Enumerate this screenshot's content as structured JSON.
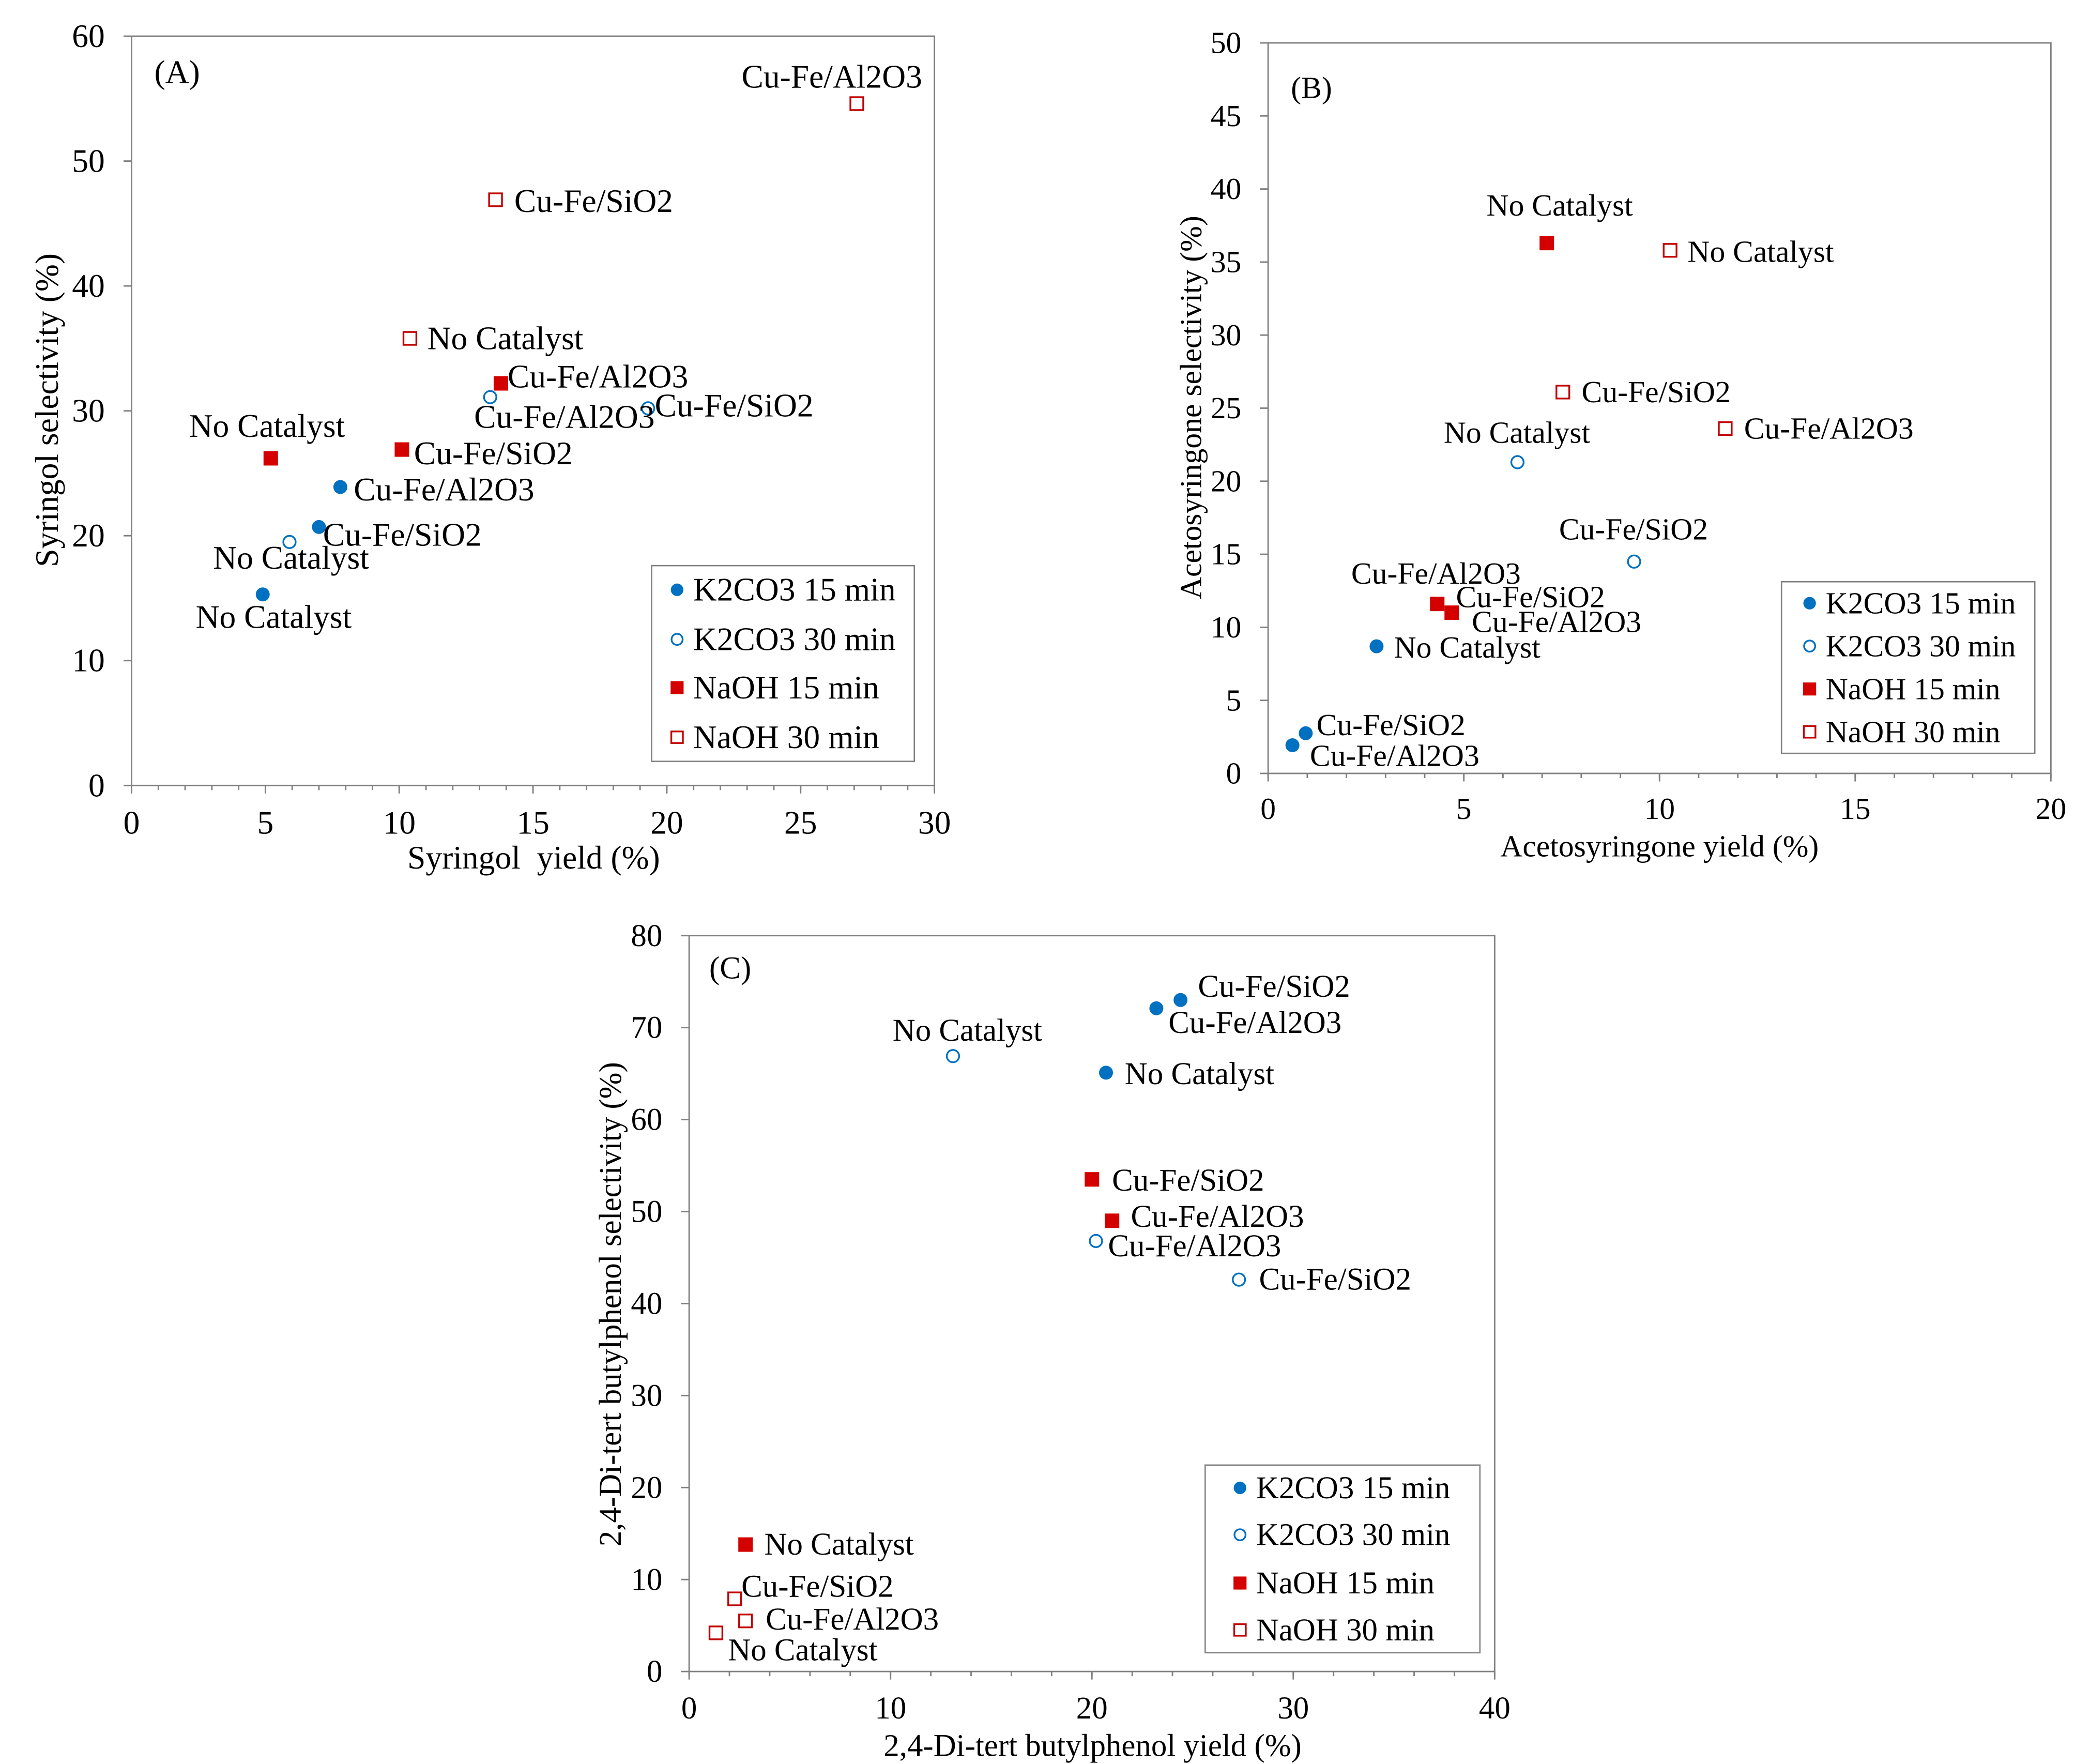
{
  "chart_data": [
    {
      "type": "scatter",
      "panel_label": "(A)",
      "xlabel": "Syringol  yield (%)",
      "ylabel": "Syringol selectivity (%)",
      "xlim": [
        0,
        30
      ],
      "ylim": [
        0,
        60
      ],
      "xticks": [
        0,
        5,
        10,
        15,
        20,
        25,
        30
      ],
      "yticks": [
        0,
        10,
        20,
        30,
        40,
        50,
        60
      ],
      "grid": false,
      "legend": "bottom-right",
      "series": [
        {
          "name": "K2CO3 15 min",
          "marker": "filled-circle",
          "color": "#0070C0",
          "points": [
            {
              "x": 4.9,
              "y": 15.3,
              "label": "No Catalyst"
            },
            {
              "x": 7.0,
              "y": 20.7,
              "label": "Cu-Fe/SiO2"
            },
            {
              "x": 7.8,
              "y": 23.9,
              "label": "Cu-Fe/Al2O3"
            }
          ]
        },
        {
          "name": "K2CO3 30 min",
          "marker": "open-circle",
          "color": "#0070C0",
          "points": [
            {
              "x": 5.9,
              "y": 19.5,
              "label": "No Catalyst"
            },
            {
              "x": 19.3,
              "y": 30.2,
              "label": "Cu-Fe/SiO2"
            },
            {
              "x": 13.4,
              "y": 31.1,
              "label": "Cu-Fe/Al2O3"
            }
          ]
        },
        {
          "name": "NaOH 15 min",
          "marker": "filled-square",
          "color": "#D40000",
          "points": [
            {
              "x": 5.2,
              "y": 26.2,
              "label": "No Catalyst"
            },
            {
              "x": 10.1,
              "y": 26.9,
              "label": "Cu-Fe/SiO2"
            },
            {
              "x": 13.8,
              "y": 32.2,
              "label": "Cu-Fe/Al2O3"
            }
          ]
        },
        {
          "name": "NaOH 30 min",
          "marker": "open-square",
          "color": "#C00000",
          "points": [
            {
              "x": 10.4,
              "y": 35.8,
              "label": "No Catalyst"
            },
            {
              "x": 13.6,
              "y": 46.9,
              "label": "Cu-Fe/SiO2"
            },
            {
              "x": 27.1,
              "y": 54.6,
              "label": "Cu-Fe/Al2O3"
            }
          ]
        }
      ]
    },
    {
      "type": "scatter",
      "panel_label": "(B)",
      "xlabel": "Acetosyringone yield (%)",
      "ylabel": "Acetosyringone selectivity (%)",
      "xlim": [
        0,
        20
      ],
      "ylim": [
        0,
        50
      ],
      "xticks": [
        0,
        5,
        10,
        15,
        20
      ],
      "yticks": [
        0,
        5,
        10,
        15,
        20,
        25,
        30,
        35,
        40,
        45,
        50
      ],
      "grid": false,
      "legend": "bottom-right",
      "series": [
        {
          "name": "K2CO3 15 min",
          "marker": "filled-circle",
          "color": "#0070C0",
          "points": [
            {
              "x": 2.77,
              "y": 8.7,
              "label": "No Catalyst"
            },
            {
              "x": 0.96,
              "y": 2.75,
              "label": "Cu-Fe/SiO2"
            },
            {
              "x": 0.62,
              "y": 1.93,
              "label": "Cu-Fe/Al2O3"
            }
          ]
        },
        {
          "name": "K2CO3 30 min",
          "marker": "open-circle",
          "color": "#0070C0",
          "points": [
            {
              "x": 6.37,
              "y": 21.3,
              "label": "No Catalyst"
            },
            {
              "x": 9.35,
              "y": 14.5,
              "label": "Cu-Fe/SiO2"
            }
          ]
        },
        {
          "name": "NaOH 15 min",
          "marker": "filled-square",
          "color": "#D40000",
          "points": [
            {
              "x": 7.12,
              "y": 36.3,
              "label": "No Catalyst"
            },
            {
              "x": 4.32,
              "y": 11.6,
              "label": "Cu-Fe/SiO2"
            },
            {
              "x": 4.69,
              "y": 11.0,
              "label": "Cu-Fe/Al2O3"
            }
          ]
        },
        {
          "name": "NaOH 30 min",
          "marker": "open-square",
          "color": "#C00000",
          "points": [
            {
              "x": 10.27,
              "y": 35.8,
              "label": "No Catalyst"
            },
            {
              "x": 7.53,
              "y": 26.1,
              "label": "Cu-Fe/SiO2"
            },
            {
              "x": 11.68,
              "y": 23.6,
              "label": "Cu-Fe/Al2O3"
            }
          ]
        }
      ],
      "annotations": [
        {
          "text": "Cu-Fe/Al2O3"
        }
      ]
    },
    {
      "type": "scatter",
      "panel_label": "(C)",
      "xlabel": "2,4-Di-tert butylphenol yield (%)",
      "ylabel": "2,4-Di-tert butylphenol selectivity (%)",
      "xlim": [
        0,
        40
      ],
      "ylim": [
        0,
        80
      ],
      "xticks": [
        0,
        10,
        20,
        30,
        40
      ],
      "yticks": [
        0,
        10,
        20,
        30,
        40,
        50,
        60,
        70,
        80
      ],
      "grid": false,
      "legend": "bottom-right",
      "series": [
        {
          "name": "K2CO3 15 min",
          "marker": "filled-circle",
          "color": "#0070C0",
          "points": [
            {
              "x": 20.7,
              "y": 65.1,
              "label": "No Catalyst"
            },
            {
              "x": 24.4,
              "y": 73.0,
              "label": "Cu-Fe/SiO2"
            },
            {
              "x": 23.2,
              "y": 72.1,
              "label": "Cu-Fe/Al2O3"
            }
          ]
        },
        {
          "name": "K2CO3 30 min",
          "marker": "open-circle",
          "color": "#0070C0",
          "points": [
            {
              "x": 13.1,
              "y": 66.9,
              "label": "No Catalyst"
            },
            {
              "x": 27.3,
              "y": 42.6,
              "label": "Cu-Fe/SiO2"
            },
            {
              "x": 20.2,
              "y": 46.8,
              "label": "Cu-Fe/Al2O3"
            }
          ]
        },
        {
          "name": "NaOH 15 min",
          "marker": "filled-square",
          "color": "#D40000",
          "points": [
            {
              "x": 2.8,
              "y": 13.8,
              "label": "No Catalyst"
            },
            {
              "x": 20.0,
              "y": 53.5,
              "label": "Cu-Fe/SiO2"
            },
            {
              "x": 21.0,
              "y": 49.0,
              "label": "Cu-Fe/Al2O3"
            }
          ]
        },
        {
          "name": "NaOH 30 min",
          "marker": "open-square",
          "color": "#C00000",
          "points": [
            {
              "x": 1.33,
              "y": 4.2,
              "label": "No Catalyst"
            },
            {
              "x": 2.26,
              "y": 7.9,
              "label": "Cu-Fe/SiO2"
            },
            {
              "x": 2.8,
              "y": 5.5,
              "label": "Cu-Fe/Al2O3"
            }
          ]
        }
      ]
    }
  ]
}
